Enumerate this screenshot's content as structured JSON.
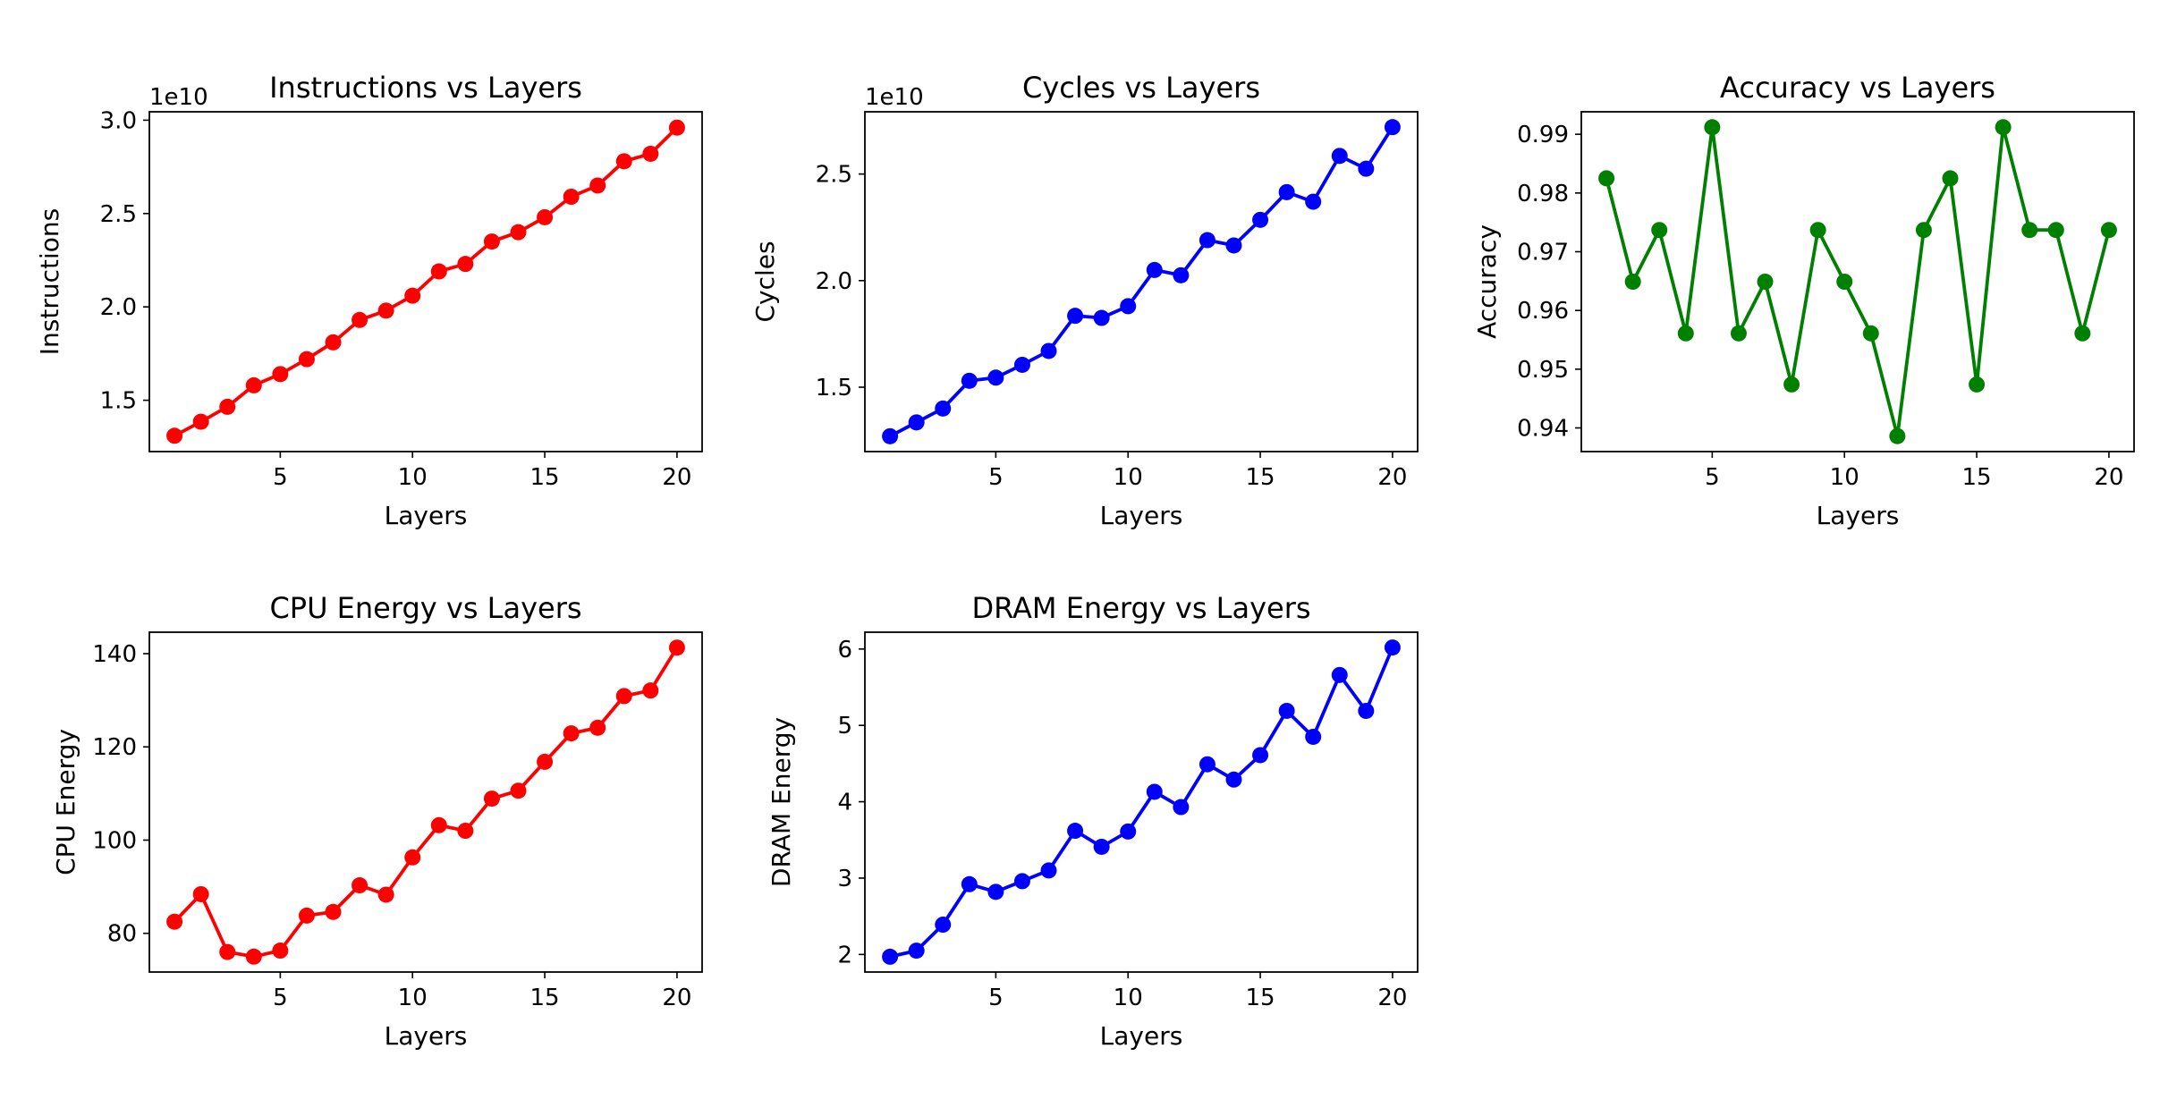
{
  "chart_data": [
    {
      "type": "line",
      "title": "Instructions vs Layers",
      "xlabel": "Layers",
      "ylabel": "Instructions",
      "y_offset_text": "1e10",
      "x": [
        1,
        2,
        3,
        4,
        5,
        6,
        7,
        8,
        9,
        10,
        11,
        12,
        13,
        14,
        15,
        16,
        17,
        18,
        19,
        20
      ],
      "values": [
        1.31,
        1.385,
        1.465,
        1.58,
        1.64,
        1.72,
        1.81,
        1.93,
        1.98,
        2.06,
        2.19,
        2.23,
        2.35,
        2.4,
        2.48,
        2.59,
        2.65,
        2.78,
        2.82,
        2.96
      ],
      "xlim": [
        0.05,
        20.95
      ],
      "ylim": [
        1.225,
        3.045
      ],
      "xticks": [
        5,
        10,
        15,
        20
      ],
      "xtick_labels": [
        "5",
        "10",
        "15",
        "20"
      ],
      "yticks": [
        1.5,
        2.0,
        2.5,
        3.0
      ],
      "ytick_labels": [
        "1.5",
        "2.0",
        "2.5",
        "3.0"
      ],
      "color": "#ff0000",
      "grid": false
    },
    {
      "type": "line",
      "title": "Cycles vs Layers",
      "xlabel": "Layers",
      "ylabel": "Cycles",
      "y_offset_text": "1e10",
      "x": [
        1,
        2,
        3,
        4,
        5,
        6,
        7,
        8,
        9,
        10,
        11,
        12,
        13,
        14,
        15,
        16,
        17,
        18,
        19,
        20
      ],
      "values": [
        1.27,
        1.335,
        1.4,
        1.53,
        1.545,
        1.605,
        1.67,
        1.835,
        1.825,
        1.88,
        2.05,
        2.025,
        2.19,
        2.165,
        2.285,
        2.415,
        2.37,
        2.585,
        2.525,
        2.72
      ],
      "xlim": [
        0.05,
        20.95
      ],
      "ylim": [
        1.198,
        2.792
      ],
      "xticks": [
        5,
        10,
        15,
        20
      ],
      "xtick_labels": [
        "5",
        "10",
        "15",
        "20"
      ],
      "yticks": [
        1.5,
        2.0,
        2.5
      ],
      "ytick_labels": [
        "1.5",
        "2.0",
        "2.5"
      ],
      "color": "#0000ff",
      "grid": false
    },
    {
      "type": "line",
      "title": "Accuracy vs Layers",
      "xlabel": "Layers",
      "ylabel": "Accuracy",
      "y_offset_text": "",
      "x": [
        1,
        2,
        3,
        4,
        5,
        6,
        7,
        8,
        9,
        10,
        11,
        12,
        13,
        14,
        15,
        16,
        17,
        18,
        19,
        20
      ],
      "values": [
        0.9825,
        0.9649,
        0.9737,
        0.9561,
        0.9912,
        0.9561,
        0.9649,
        0.9474,
        0.9737,
        0.9649,
        0.9561,
        0.9386,
        0.9737,
        0.9825,
        0.9474,
        0.9912,
        0.9737,
        0.9737,
        0.9561,
        0.9737
      ],
      "xlim": [
        0.05,
        20.95
      ],
      "ylim": [
        0.93597,
        0.99383
      ],
      "xticks": [
        5,
        10,
        15,
        20
      ],
      "xtick_labels": [
        "5",
        "10",
        "15",
        "20"
      ],
      "yticks": [
        0.94,
        0.95,
        0.96,
        0.97,
        0.98,
        0.99
      ],
      "ytick_labels": [
        "0.94",
        "0.95",
        "0.96",
        "0.97",
        "0.98",
        "0.99"
      ],
      "color": "#008000",
      "grid": false
    },
    {
      "type": "line",
      "title": "CPU Energy vs Layers",
      "xlabel": "Layers",
      "ylabel": "CPU Energy",
      "y_offset_text": "",
      "x": [
        1,
        2,
        3,
        4,
        5,
        6,
        7,
        8,
        9,
        10,
        11,
        12,
        13,
        14,
        15,
        16,
        17,
        18,
        19,
        20
      ],
      "values": [
        82.5,
        88.4,
        76.0,
        75.0,
        76.3,
        83.8,
        84.6,
        90.3,
        88.3,
        96.3,
        103.2,
        102.0,
        108.9,
        110.6,
        116.8,
        122.9,
        124.1,
        130.9,
        132.1,
        141.3
      ],
      "xlim": [
        0.05,
        20.95
      ],
      "ylim": [
        71.7,
        144.6
      ],
      "xticks": [
        5,
        10,
        15,
        20
      ],
      "xtick_labels": [
        "5",
        "10",
        "15",
        "20"
      ],
      "yticks": [
        80,
        100,
        120,
        140
      ],
      "ytick_labels": [
        "80",
        "100",
        "120",
        "140"
      ],
      "color": "#ff0000",
      "grid": false
    },
    {
      "type": "line",
      "title": "DRAM Energy vs Layers",
      "xlabel": "Layers",
      "ylabel": "DRAM Energy",
      "y_offset_text": "",
      "x": [
        1,
        2,
        3,
        4,
        5,
        6,
        7,
        8,
        9,
        10,
        11,
        12,
        13,
        14,
        15,
        16,
        17,
        18,
        19,
        20
      ],
      "values": [
        1.97,
        2.05,
        2.39,
        2.92,
        2.82,
        2.96,
        3.1,
        3.62,
        3.41,
        3.61,
        4.13,
        3.93,
        4.49,
        4.29,
        4.61,
        5.19,
        4.85,
        5.66,
        5.19,
        6.02
      ],
      "xlim": [
        0.05,
        20.95
      ],
      "ylim": [
        1.77,
        6.22
      ],
      "xticks": [
        5,
        10,
        15,
        20
      ],
      "xtick_labels": [
        "5",
        "10",
        "15",
        "20"
      ],
      "yticks": [
        2,
        3,
        4,
        5,
        6
      ],
      "ytick_labels": [
        "2",
        "3",
        "4",
        "5",
        "6"
      ],
      "color": "#0000ff",
      "grid": false
    }
  ]
}
